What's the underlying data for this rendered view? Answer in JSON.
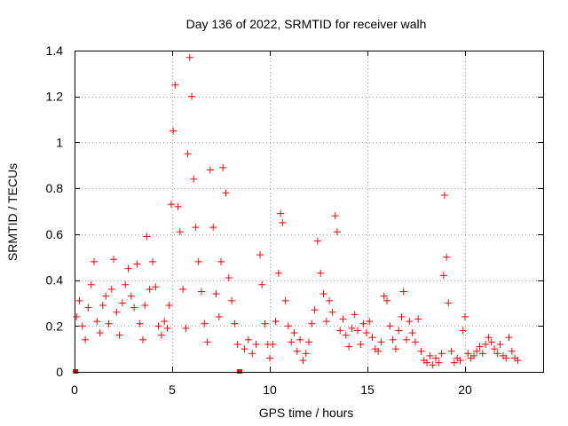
{
  "chart_data": {
    "type": "scatter",
    "title": "Day 136 of 2022, SRMTID for receiver walh",
    "xlabel": "GPS time / hours",
    "ylabel": "SRMTID / TECUs",
    "xlim": [
      0,
      24
    ],
    "ylim": [
      0,
      1.4
    ],
    "x_ticks": [
      0,
      5,
      10,
      15,
      20
    ],
    "x_tick_labels": [
      "0",
      "5",
      "10",
      "15",
      "20"
    ],
    "y_ticks": [
      0,
      0.2,
      0.4,
      0.6,
      0.8,
      1.0,
      1.2,
      1.4
    ],
    "y_tick_labels": [
      "0",
      "0.2",
      "0.4",
      "0.6",
      "0.8",
      "1",
      "1.2",
      "1.4"
    ],
    "grid": true,
    "marker": "+",
    "marker_color": "#ff0000",
    "gap_markers": [
      0.05,
      8.45
    ],
    "series": [
      {
        "name": "SRMTID",
        "points": [
          [
            0.1,
            0.24
          ],
          [
            0.25,
            0.31
          ],
          [
            0.4,
            0.2
          ],
          [
            0.55,
            0.14
          ],
          [
            0.7,
            0.28
          ],
          [
            0.85,
            0.38
          ],
          [
            1.0,
            0.48
          ],
          [
            1.15,
            0.22
          ],
          [
            1.3,
            0.17
          ],
          [
            1.45,
            0.29
          ],
          [
            1.6,
            0.33
          ],
          [
            1.75,
            0.21
          ],
          [
            1.9,
            0.36
          ],
          [
            2.0,
            0.49
          ],
          [
            2.15,
            0.26
          ],
          [
            2.3,
            0.16
          ],
          [
            2.45,
            0.3
          ],
          [
            2.6,
            0.38
          ],
          [
            2.75,
            0.45
          ],
          [
            2.9,
            0.33
          ],
          [
            3.05,
            0.28
          ],
          [
            3.2,
            0.47
          ],
          [
            3.35,
            0.21
          ],
          [
            3.5,
            0.14
          ],
          [
            3.6,
            0.29
          ],
          [
            3.7,
            0.59
          ],
          [
            3.85,
            0.36
          ],
          [
            4.0,
            0.48
          ],
          [
            4.15,
            0.37
          ],
          [
            4.3,
            0.2
          ],
          [
            4.45,
            0.16
          ],
          [
            4.6,
            0.22
          ],
          [
            4.75,
            0.19
          ],
          [
            4.85,
            0.29
          ],
          [
            4.95,
            0.73
          ],
          [
            5.05,
            1.05
          ],
          [
            5.15,
            1.25
          ],
          [
            5.3,
            0.72
          ],
          [
            5.4,
            0.61
          ],
          [
            5.55,
            0.36
          ],
          [
            5.7,
            0.19
          ],
          [
            5.8,
            0.95
          ],
          [
            5.9,
            1.37
          ],
          [
            6.0,
            1.2
          ],
          [
            6.1,
            0.84
          ],
          [
            6.2,
            0.63
          ],
          [
            6.35,
            0.48
          ],
          [
            6.5,
            0.35
          ],
          [
            6.65,
            0.21
          ],
          [
            6.8,
            0.13
          ],
          [
            6.95,
            0.88
          ],
          [
            7.1,
            0.63
          ],
          [
            7.25,
            0.34
          ],
          [
            7.4,
            0.24
          ],
          [
            7.5,
            0.48
          ],
          [
            7.6,
            0.89
          ],
          [
            7.75,
            0.78
          ],
          [
            7.9,
            0.41
          ],
          [
            8.05,
            0.31
          ],
          [
            8.2,
            0.21
          ],
          [
            8.35,
            0.12
          ],
          [
            8.7,
            0.1
          ],
          [
            8.9,
            0.14
          ],
          [
            9.1,
            0.08
          ],
          [
            9.3,
            0.12
          ],
          [
            9.5,
            0.51
          ],
          [
            9.6,
            0.38
          ],
          [
            9.75,
            0.21
          ],
          [
            9.9,
            0.12
          ],
          [
            10.0,
            0.06
          ],
          [
            10.15,
            0.12
          ],
          [
            10.3,
            0.22
          ],
          [
            10.45,
            0.43
          ],
          [
            10.55,
            0.69
          ],
          [
            10.65,
            0.65
          ],
          [
            10.8,
            0.31
          ],
          [
            10.95,
            0.2
          ],
          [
            11.1,
            0.13
          ],
          [
            11.25,
            0.17
          ],
          [
            11.4,
            0.09
          ],
          [
            11.55,
            0.14
          ],
          [
            11.7,
            0.05
          ],
          [
            11.85,
            0.08
          ],
          [
            12.0,
            0.13
          ],
          [
            12.15,
            0.21
          ],
          [
            12.3,
            0.27
          ],
          [
            12.45,
            0.57
          ],
          [
            12.6,
            0.43
          ],
          [
            12.75,
            0.34
          ],
          [
            12.9,
            0.22
          ],
          [
            13.05,
            0.31
          ],
          [
            13.2,
            0.26
          ],
          [
            13.35,
            0.68
          ],
          [
            13.45,
            0.61
          ],
          [
            13.6,
            0.18
          ],
          [
            13.75,
            0.23
          ],
          [
            13.9,
            0.16
          ],
          [
            14.05,
            0.11
          ],
          [
            14.2,
            0.19
          ],
          [
            14.35,
            0.25
          ],
          [
            14.5,
            0.18
          ],
          [
            14.65,
            0.12
          ],
          [
            14.8,
            0.21
          ],
          [
            14.95,
            0.17
          ],
          [
            15.1,
            0.22
          ],
          [
            15.25,
            0.15
          ],
          [
            15.4,
            0.1
          ],
          [
            15.55,
            0.09
          ],
          [
            15.7,
            0.13
          ],
          [
            15.85,
            0.33
          ],
          [
            16.0,
            0.31
          ],
          [
            16.15,
            0.2
          ],
          [
            16.3,
            0.14
          ],
          [
            16.45,
            0.1
          ],
          [
            16.6,
            0.18
          ],
          [
            16.75,
            0.24
          ],
          [
            16.85,
            0.35
          ],
          [
            17.0,
            0.14
          ],
          [
            17.15,
            0.22
          ],
          [
            17.3,
            0.17
          ],
          [
            17.45,
            0.13
          ],
          [
            17.6,
            0.23
          ],
          [
            17.75,
            0.09
          ],
          [
            17.9,
            0.05
          ],
          [
            18.05,
            0.04
          ],
          [
            18.2,
            0.07
          ],
          [
            18.35,
            0.03
          ],
          [
            18.5,
            0.06
          ],
          [
            18.65,
            0.04
          ],
          [
            18.8,
            0.08
          ],
          [
            18.9,
            0.42
          ],
          [
            18.95,
            0.77
          ],
          [
            19.05,
            0.5
          ],
          [
            19.15,
            0.3
          ],
          [
            19.3,
            0.09
          ],
          [
            19.45,
            0.04
          ],
          [
            19.6,
            0.06
          ],
          [
            19.75,
            0.05
          ],
          [
            19.9,
            0.18
          ],
          [
            20.0,
            0.24
          ],
          [
            20.15,
            0.08
          ],
          [
            20.3,
            0.06
          ],
          [
            20.45,
            0.07
          ],
          [
            20.6,
            0.09
          ],
          [
            20.75,
            0.11
          ],
          [
            20.9,
            0.08
          ],
          [
            21.05,
            0.12
          ],
          [
            21.2,
            0.15
          ],
          [
            21.35,
            0.13
          ],
          [
            21.5,
            0.1
          ],
          [
            21.65,
            0.08
          ],
          [
            21.8,
            0.12
          ],
          [
            21.95,
            0.07
          ],
          [
            22.1,
            0.06
          ],
          [
            22.25,
            0.15
          ],
          [
            22.4,
            0.09
          ],
          [
            22.55,
            0.06
          ],
          [
            22.7,
            0.05
          ]
        ]
      }
    ]
  }
}
